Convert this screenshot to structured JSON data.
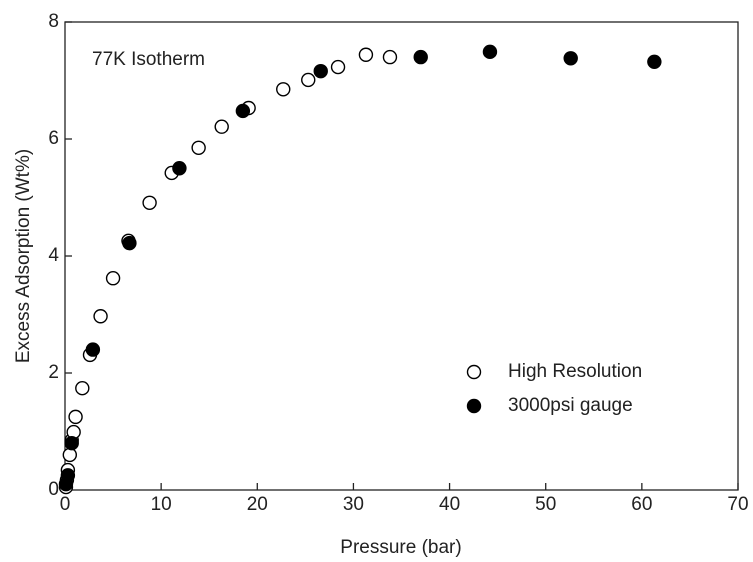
{
  "chart_data": {
    "type": "scatter",
    "annotation": "77K Isotherm",
    "x_label": "Pressure (bar)",
    "y_label": "Excess Adsorption (Wt%)",
    "xlim": [
      0,
      70
    ],
    "ylim": [
      0,
      8
    ],
    "xticks": [
      0,
      10,
      20,
      30,
      40,
      50,
      60,
      70
    ],
    "yticks": [
      0,
      2,
      4,
      6,
      8
    ],
    "legend_position": "lower right",
    "series": [
      {
        "name": "High Resolution",
        "color": "#000000",
        "filled": false,
        "x": [
          0.1,
          0.2,
          0.3,
          0.5,
          0.7,
          0.9,
          1.1,
          1.8,
          2.6,
          3.7,
          5.0,
          6.6,
          8.8,
          11.1,
          13.9,
          16.3,
          19.1,
          22.7,
          25.3,
          28.4,
          31.3,
          33.8
        ],
        "values": [
          0.05,
          0.17,
          0.34,
          0.6,
          0.85,
          0.99,
          1.25,
          1.74,
          2.31,
          2.97,
          3.62,
          4.26,
          4.91,
          5.42,
          5.85,
          6.21,
          6.53,
          6.85,
          7.01,
          7.23,
          7.44,
          7.4
        ]
      },
      {
        "name": "3000psi gauge",
        "color": "#000000",
        "filled": true,
        "x": [
          0.1,
          0.3,
          0.7,
          2.9,
          6.7,
          11.9,
          18.5,
          26.6,
          37.0,
          44.2,
          52.6,
          61.3
        ],
        "values": [
          0.1,
          0.25,
          0.8,
          2.4,
          4.22,
          5.5,
          6.48,
          7.16,
          7.4,
          7.49,
          7.38,
          7.32
        ]
      }
    ]
  }
}
